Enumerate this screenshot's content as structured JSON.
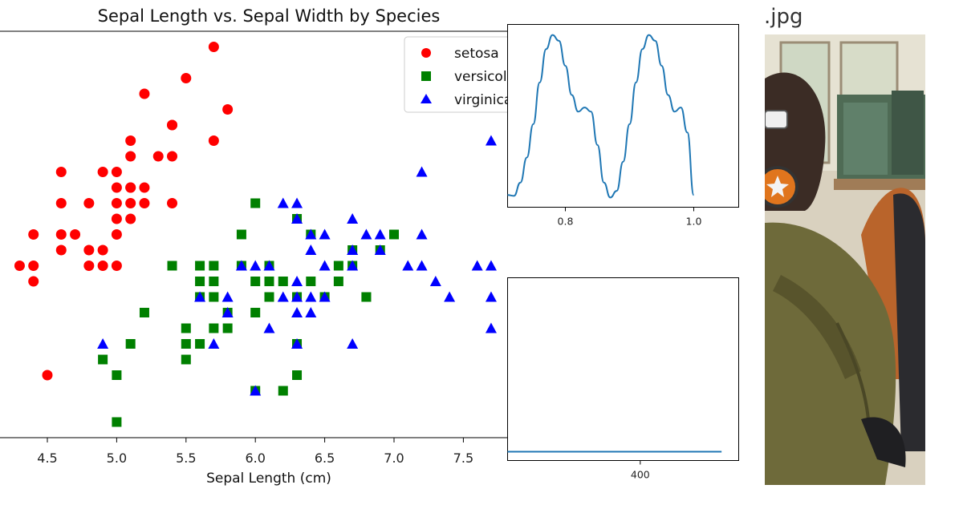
{
  "chart_data": [
    {
      "type": "scatter",
      "title": "Sepal Length vs. Sepal Width by Species",
      "xlabel": "Sepal Length (cm)",
      "ylabel": "",
      "xlim": [
        4.2,
        7.8
      ],
      "ylim": [
        1.9,
        4.5
      ],
      "xticks": [
        "4.5",
        "5.0",
        "5.5",
        "6.0",
        "6.5",
        "7.0",
        "7.5"
      ],
      "legend_position": "top-right",
      "series": [
        {
          "name": "setosa",
          "color": "#ff0000",
          "marker": "circle",
          "points": [
            [
              5.7,
              4.4
            ],
            [
              5.5,
              4.2
            ],
            [
              5.2,
              4.1
            ],
            [
              5.8,
              4.0
            ],
            [
              5.4,
              3.9
            ],
            [
              5.1,
              3.8
            ],
            [
              5.7,
              3.8
            ],
            [
              5.1,
              3.7
            ],
            [
              5.0,
              3.6
            ],
            [
              5.4,
              3.9
            ],
            [
              5.3,
              3.7
            ],
            [
              5.1,
              3.5
            ],
            [
              5.4,
              3.7
            ],
            [
              4.6,
              3.6
            ],
            [
              5.0,
              3.5
            ],
            [
              5.1,
              3.5
            ],
            [
              5.2,
              3.5
            ],
            [
              4.9,
              3.6
            ],
            [
              5.4,
              3.4
            ],
            [
              4.6,
              3.4
            ],
            [
              4.8,
              3.4
            ],
            [
              5.0,
              3.4
            ],
            [
              5.1,
              3.4
            ],
            [
              5.2,
              3.4
            ],
            [
              5.0,
              3.3
            ],
            [
              5.1,
              3.3
            ],
            [
              4.4,
              3.2
            ],
            [
              4.6,
              3.2
            ],
            [
              4.7,
              3.2
            ],
            [
              5.0,
              3.2
            ],
            [
              4.6,
              3.1
            ],
            [
              4.8,
              3.1
            ],
            [
              4.9,
              3.1
            ],
            [
              4.3,
              3.0
            ],
            [
              4.4,
              3.0
            ],
            [
              4.8,
              3.0
            ],
            [
              4.9,
              3.0
            ],
            [
              5.0,
              3.0
            ],
            [
              4.4,
              2.9
            ],
            [
              4.5,
              2.3
            ]
          ]
        },
        {
          "name": "versicolor",
          "color": "#008000",
          "marker": "square",
          "points": [
            [
              6.0,
              3.4
            ],
            [
              5.9,
              3.2
            ],
            [
              7.0,
              3.2
            ],
            [
              6.4,
              3.2
            ],
            [
              5.4,
              3.0
            ],
            [
              5.6,
              3.0
            ],
            [
              5.7,
              3.0
            ],
            [
              6.1,
              3.0
            ],
            [
              6.6,
              3.0
            ],
            [
              6.7,
              3.0
            ],
            [
              6.8,
              2.8
            ],
            [
              5.6,
              2.9
            ],
            [
              5.7,
              2.9
            ],
            [
              6.0,
              2.9
            ],
            [
              6.1,
              2.9
            ],
            [
              6.2,
              2.9
            ],
            [
              6.4,
              2.9
            ],
            [
              6.6,
              2.9
            ],
            [
              5.6,
              2.8
            ],
            [
              5.7,
              2.8
            ],
            [
              6.1,
              2.8
            ],
            [
              6.5,
              2.8
            ],
            [
              6.8,
              2.8
            ],
            [
              6.3,
              2.8
            ],
            [
              5.2,
              2.7
            ],
            [
              5.8,
              2.7
            ],
            [
              6.0,
              2.7
            ],
            [
              5.5,
              2.6
            ],
            [
              5.7,
              2.6
            ],
            [
              5.8,
              2.6
            ],
            [
              6.3,
              2.5
            ],
            [
              5.5,
              2.5
            ],
            [
              5.1,
              2.5
            ],
            [
              5.6,
              2.5
            ],
            [
              4.9,
              2.4
            ],
            [
              5.5,
              2.4
            ],
            [
              6.3,
              2.3
            ],
            [
              5.0,
              2.3
            ],
            [
              6.0,
              2.2
            ],
            [
              6.2,
              2.2
            ],
            [
              5.0,
              2.0
            ],
            [
              6.3,
              3.3
            ],
            [
              6.9,
              3.1
            ],
            [
              6.7,
              3.1
            ],
            [
              5.9,
              3.0
            ]
          ]
        },
        {
          "name": "virginica",
          "color": "#0000ff",
          "marker": "triangle",
          "points": [
            [
              7.7,
              3.8
            ],
            [
              7.2,
              3.6
            ],
            [
              6.3,
              3.4
            ],
            [
              6.2,
              3.4
            ],
            [
              6.3,
              3.3
            ],
            [
              6.7,
              3.3
            ],
            [
              6.4,
              3.2
            ],
            [
              6.5,
              3.2
            ],
            [
              6.8,
              3.2
            ],
            [
              6.9,
              3.2
            ],
            [
              7.2,
              3.2
            ],
            [
              6.9,
              3.1
            ],
            [
              6.4,
              3.1
            ],
            [
              6.7,
              3.1
            ],
            [
              5.9,
              3.0
            ],
            [
              6.0,
              3.0
            ],
            [
              6.1,
              3.0
            ],
            [
              6.5,
              3.0
            ],
            [
              6.7,
              3.0
            ],
            [
              7.1,
              3.0
            ],
            [
              7.2,
              3.0
            ],
            [
              7.6,
              3.0
            ],
            [
              7.7,
              3.0
            ],
            [
              7.3,
              2.9
            ],
            [
              6.3,
              2.9
            ],
            [
              6.4,
              2.8
            ],
            [
              5.6,
              2.8
            ],
            [
              5.8,
              2.8
            ],
            [
              6.2,
              2.8
            ],
            [
              6.3,
              2.8
            ],
            [
              7.4,
              2.8
            ],
            [
              7.7,
              2.8
            ],
            [
              6.5,
              2.8
            ],
            [
              5.8,
              2.7
            ],
            [
              6.4,
              2.7
            ],
            [
              6.3,
              2.7
            ],
            [
              7.7,
              2.6
            ],
            [
              6.1,
              2.6
            ],
            [
              5.7,
              2.5
            ],
            [
              6.3,
              2.5
            ],
            [
              6.7,
              2.5
            ],
            [
              4.9,
              2.5
            ],
            [
              6.0,
              2.2
            ]
          ]
        }
      ]
    },
    {
      "type": "line",
      "title": "",
      "xlabel": "",
      "ylabel": "",
      "xlim": [
        0.71,
        1.07
      ],
      "xticks": [
        "0.8",
        "1.0"
      ],
      "series": [
        {
          "color": "#1f77b4",
          "x": [
            0.71,
            0.72,
            0.73,
            0.74,
            0.75,
            0.76,
            0.77,
            0.78,
            0.79,
            0.8,
            0.81,
            0.82,
            0.83,
            0.84,
            0.85,
            0.86,
            0.87,
            0.88,
            0.89,
            0.9,
            0.91,
            0.92,
            0.93,
            0.94,
            0.95,
            0.96,
            0.97,
            0.98,
            0.99,
            1.0
          ],
          "y": [
            -0.95,
            -0.96,
            -0.8,
            -0.5,
            -0.1,
            0.4,
            0.8,
            0.97,
            0.9,
            0.6,
            0.25,
            0.05,
            0.1,
            0.05,
            -0.35,
            -0.8,
            -0.98,
            -0.9,
            -0.55,
            -0.1,
            0.4,
            0.8,
            0.97,
            0.9,
            0.6,
            0.25,
            0.05,
            0.1,
            -0.2,
            -0.95
          ]
        }
      ]
    },
    {
      "type": "line",
      "title": "",
      "xlabel": "",
      "ylabel": "",
      "xlim": [
        245,
        515
      ],
      "xticks": [
        "400"
      ],
      "series": [
        {
          "color": "#1f77b4",
          "x": [
            245,
            495
          ],
          "y": [
            0,
            0
          ]
        }
      ]
    }
  ],
  "image_panel": {
    "filename": ".jpg"
  }
}
